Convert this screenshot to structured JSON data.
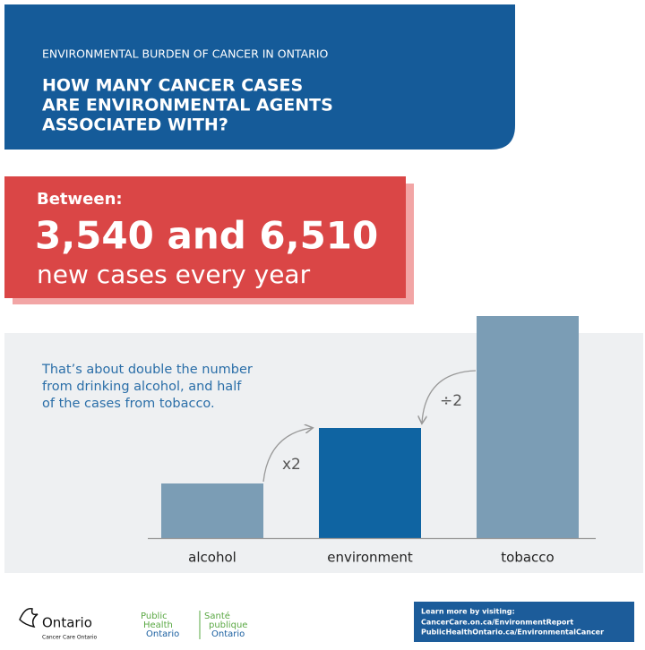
{
  "header": {
    "kicker": "ENVIRONMENTAL BURDEN OF CANCER IN ONTARIO",
    "title": [
      "HOW MANY CANCER CASES",
      "ARE ENVIRONMENTAL AGENTS",
      "ASSOCIATED WITH?"
    ]
  },
  "highlight": {
    "lead": "Between:",
    "figure": "3,540 and 6,510",
    "caption": "new cases every year"
  },
  "chart_data": {
    "type": "bar",
    "note": [
      "That’s about double the number",
      "from drinking alcohol, and half",
      "of the cases from tobacco."
    ],
    "annotations": [
      "x2",
      "÷2"
    ],
    "categories": [
      "alcohol",
      "environment",
      "tobacco"
    ],
    "values": [
      61,
      123,
      248
    ],
    "colors": [
      "#7b9db5",
      "#0f64a2",
      "#7b9db5"
    ],
    "ylim": [
      0,
      248
    ]
  },
  "footer": {
    "ontario": "Ontario",
    "cco": "Cancer Care Ontario",
    "pho_en": [
      "Public",
      "Health",
      "Ontario"
    ],
    "pho_fr": [
      "Santé",
      "publique",
      "Ontario"
    ],
    "learn": [
      "Learn more by visiting:",
      "CancerCare.on.ca/EnvironmentReport",
      "PublicHealthOntario.ca/EnvironmentalCancer"
    ]
  }
}
